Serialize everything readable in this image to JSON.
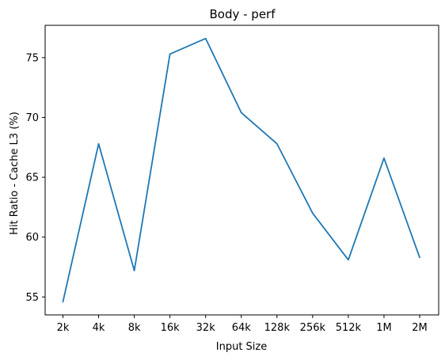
{
  "chart_data": {
    "type": "line",
    "title": "Body - perf",
    "xlabel": "Input Size",
    "ylabel": "Hit Ratio - Cache L3 (%)",
    "categories": [
      "2k",
      "4k",
      "8k",
      "16k",
      "32k",
      "64k",
      "128k",
      "256k",
      "512k",
      "1M",
      "2M"
    ],
    "series": [
      {
        "values": [
          54.6,
          67.8,
          57.2,
          75.3,
          76.6,
          70.4,
          67.8,
          62.0,
          58.1,
          66.6,
          58.3
        ]
      }
    ],
    "yticks": [
      55,
      60,
      65,
      70,
      75
    ],
    "ylim": [
      53.5,
      77.7
    ],
    "grid": false,
    "line_color": "#1f77b4"
  }
}
